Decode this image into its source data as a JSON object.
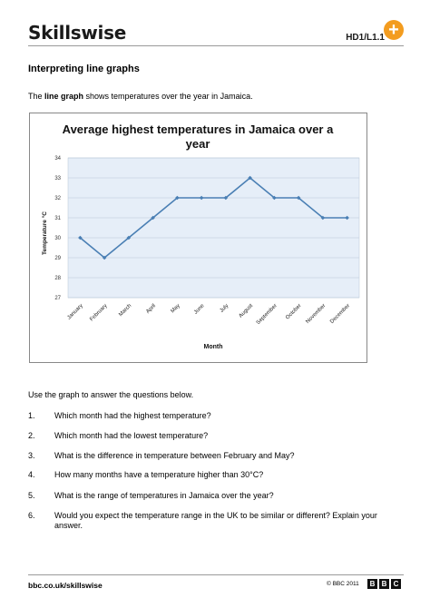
{
  "header": {
    "logo": "Skillswise",
    "code": "HD1/L1.1",
    "plus_symbol": "+"
  },
  "page_title": "Interpreting line graphs",
  "intro": {
    "before": "The ",
    "bold": "line graph",
    "after": " shows temperatures over the year in Jamaica."
  },
  "chart_data": {
    "type": "line",
    "title_line1": "Average highest temperatures in Jamaica over a",
    "title_line2": "year",
    "xlabel": "Month",
    "ylabel": "Temperature °C",
    "categories": [
      "January",
      "February",
      "March",
      "April",
      "May",
      "June",
      "July",
      "August",
      "September",
      "October",
      "November",
      "December"
    ],
    "values": [
      30,
      29,
      30,
      31,
      32,
      32,
      32,
      33,
      32,
      32,
      31,
      31
    ],
    "ylim": [
      27,
      34
    ],
    "yticks": [
      "27",
      "28",
      "29",
      "30",
      "31",
      "32",
      "33",
      "34"
    ],
    "grid": true,
    "line_color": "#4a7fb4",
    "plot_background": "#e6eef8"
  },
  "questions_prompt": "Use the graph to answer the questions below.",
  "questions": [
    {
      "num": "1.",
      "text": "Which month had the highest temperature?"
    },
    {
      "num": "2.",
      "text": "Which month had the lowest temperature?"
    },
    {
      "num": "3.",
      "text": "What is the difference in temperature between February and May?"
    },
    {
      "num": "4.",
      "text": "How many months have a temperature higher than 30°C?"
    },
    {
      "num": "5.",
      "text": "What is the range of temperatures in Jamaica over the year?"
    },
    {
      "num": "6.",
      "text": "Would you expect the temperature range in the UK to be similar or different? Explain your answer."
    }
  ],
  "footer": {
    "url": "bbc.co.uk/skillswise",
    "copyright": "© BBC 2011",
    "bbc_letters": [
      "B",
      "B",
      "C"
    ]
  }
}
